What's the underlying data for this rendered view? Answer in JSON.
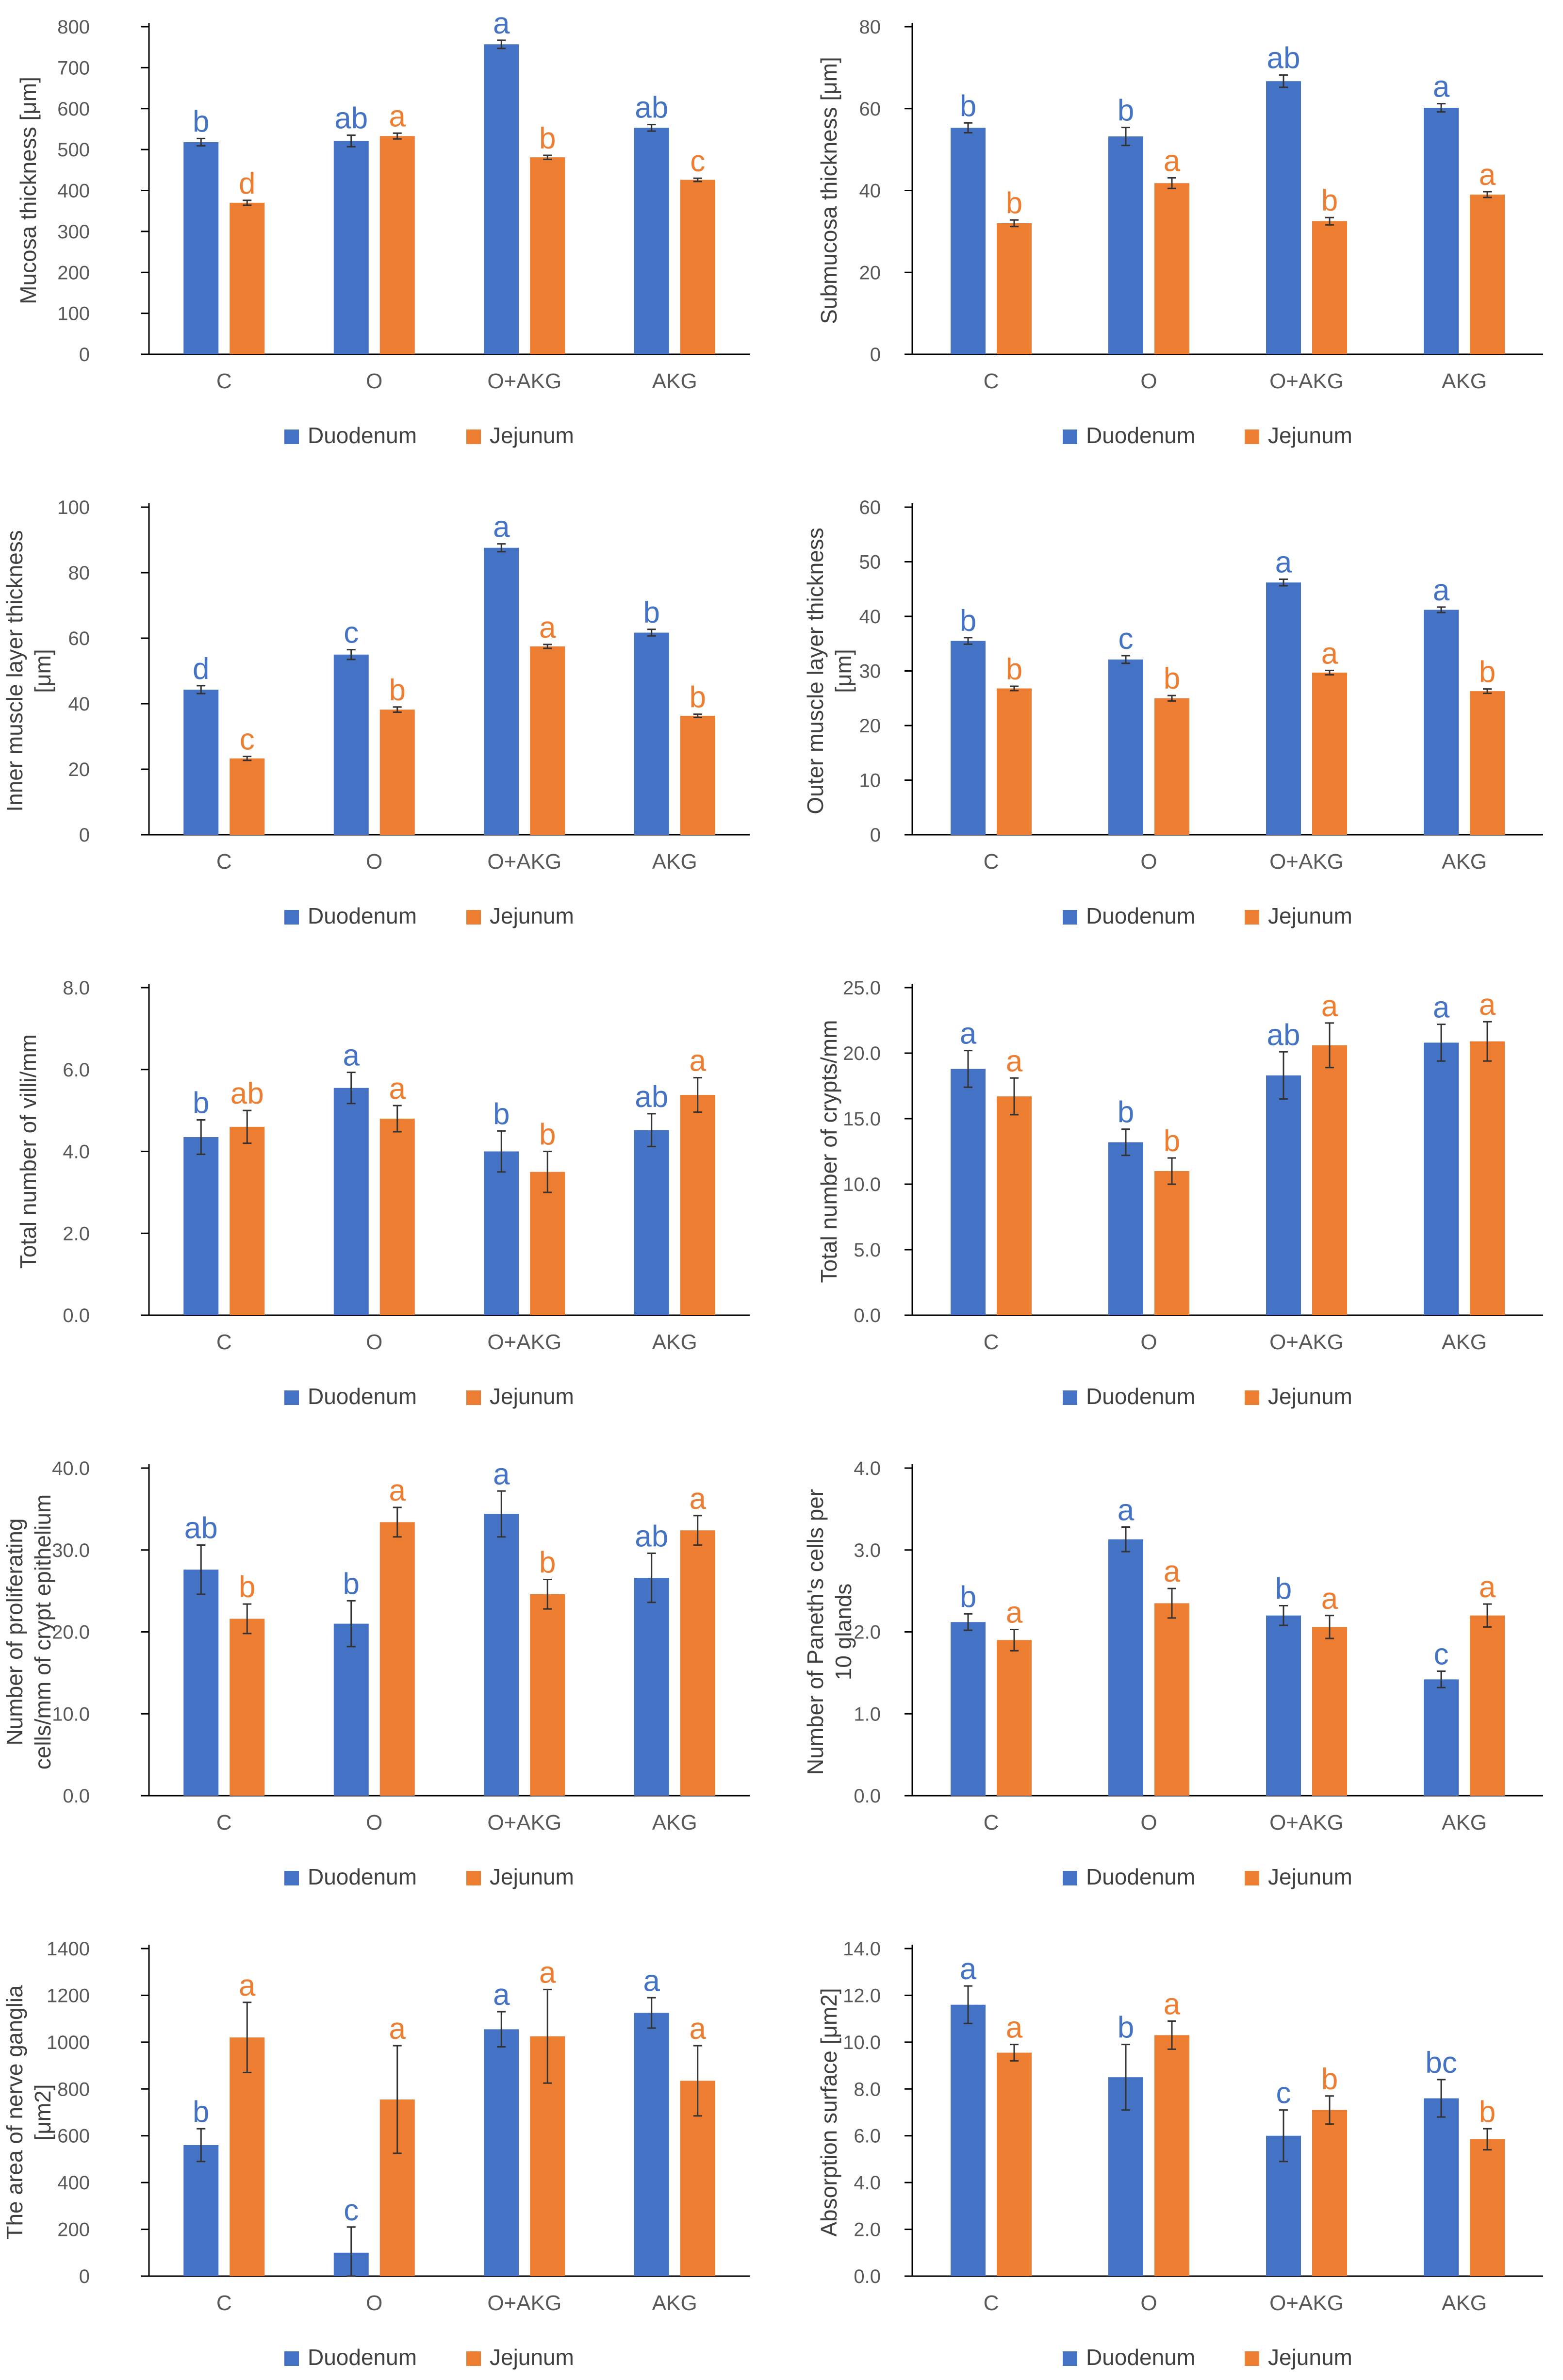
{
  "colors": {
    "duodenum": "#4472C4",
    "jejunum": "#ED7D31",
    "axis": "#000000",
    "tick": "#595959"
  },
  "legend": {
    "duodenum": "Duodenum",
    "jejunum": "Jejunum"
  },
  "chart_data": [
    {
      "type": "bar",
      "title": "",
      "categories": [
        "C",
        "O",
        "O+AKG",
        "AKG"
      ],
      "ylabel": [
        "Mucosa thickness [μm]"
      ],
      "ylim": [
        0,
        800
      ],
      "ystep": 100,
      "ydecimals": 0,
      "series": [
        {
          "name": "Duodenum",
          "values": [
            518,
            521,
            757,
            553
          ],
          "errors": [
            9,
            14,
            10,
            8
          ],
          "letters": [
            "b",
            "ab",
            "a",
            "ab"
          ]
        },
        {
          "name": "Jejunum",
          "values": [
            370,
            533,
            481,
            426
          ],
          "errors": [
            6,
            7,
            5,
            4
          ],
          "letters": [
            "d",
            "a",
            "b",
            "c"
          ]
        }
      ]
    },
    {
      "type": "bar",
      "title": "",
      "categories": [
        "C",
        "O",
        "O+AKG",
        "AKG"
      ],
      "ylabel": [
        "Submucosa thickness [μm]"
      ],
      "ylim": [
        0,
        80
      ],
      "ystep": 20,
      "ydecimals": 0,
      "series": [
        {
          "name": "Duodenum",
          "values": [
            55.3,
            53.2,
            66.7,
            60.2
          ],
          "errors": [
            1.2,
            2.2,
            1.5,
            1.0
          ],
          "letters": [
            "b",
            "b",
            "ab",
            "a"
          ]
        },
        {
          "name": "Jejunum",
          "values": [
            32.0,
            41.8,
            32.5,
            39.0
          ],
          "errors": [
            0.8,
            1.3,
            0.9,
            0.7
          ],
          "letters": [
            "b",
            "a",
            "b",
            "a"
          ]
        }
      ]
    },
    {
      "type": "bar",
      "title": "",
      "categories": [
        "C",
        "O",
        "O+AKG",
        "AKG"
      ],
      "ylabel": [
        "Inner muscle layer thickness",
        "[μm]"
      ],
      "ylim": [
        0,
        100
      ],
      "ystep": 20,
      "ydecimals": 0,
      "series": [
        {
          "name": "Duodenum",
          "values": [
            44.3,
            55.0,
            87.6,
            61.7
          ],
          "errors": [
            1.2,
            1.5,
            1.2,
            1.0
          ],
          "letters": [
            "d",
            "c",
            "a",
            "b"
          ]
        },
        {
          "name": "Jejunum",
          "values": [
            23.3,
            38.2,
            57.5,
            36.3
          ],
          "errors": [
            0.6,
            0.8,
            0.6,
            0.5
          ],
          "letters": [
            "c",
            "b",
            "a",
            "b"
          ]
        }
      ]
    },
    {
      "type": "bar",
      "title": "",
      "categories": [
        "C",
        "O",
        "O+AKG",
        "AKG"
      ],
      "ylabel": [
        "Outer muscle layer thickness",
        "[μm]"
      ],
      "ylim": [
        0,
        60
      ],
      "ystep": 10,
      "ydecimals": 0,
      "series": [
        {
          "name": "Duodenum",
          "values": [
            35.5,
            32.1,
            46.2,
            41.2
          ],
          "errors": [
            0.6,
            0.7,
            0.6,
            0.5
          ],
          "letters": [
            "b",
            "c",
            "a",
            "a"
          ]
        },
        {
          "name": "Jejunum",
          "values": [
            26.8,
            25.0,
            29.7,
            26.3
          ],
          "errors": [
            0.4,
            0.5,
            0.4,
            0.4
          ],
          "letters": [
            "b",
            "b",
            "a",
            "b"
          ]
        }
      ]
    },
    {
      "type": "bar",
      "title": "",
      "categories": [
        "C",
        "O",
        "O+AKG",
        "AKG"
      ],
      "ylabel": [
        "Total number of villi/mm"
      ],
      "ylim": [
        0,
        8
      ],
      "ystep": 2,
      "ydecimals": 1,
      "series": [
        {
          "name": "Duodenum",
          "values": [
            4.35,
            5.55,
            4.0,
            4.52
          ],
          "errors": [
            0.42,
            0.38,
            0.5,
            0.4
          ],
          "letters": [
            "b",
            "a",
            "b",
            "ab"
          ]
        },
        {
          "name": "Jejunum",
          "values": [
            4.6,
            4.8,
            3.5,
            5.38
          ],
          "errors": [
            0.4,
            0.32,
            0.5,
            0.42
          ],
          "letters": [
            "ab",
            "a",
            "b",
            "a"
          ]
        }
      ]
    },
    {
      "type": "bar",
      "title": "",
      "categories": [
        "C",
        "O",
        "O+AKG",
        "AKG"
      ],
      "ylabel": [
        "Total number of crypts/mm"
      ],
      "ylim": [
        0,
        25
      ],
      "ystep": 5,
      "ydecimals": 1,
      "series": [
        {
          "name": "Duodenum",
          "values": [
            18.8,
            13.2,
            18.3,
            20.8
          ],
          "errors": [
            1.4,
            1.0,
            1.8,
            1.4
          ],
          "letters": [
            "a",
            "b",
            "ab",
            "a"
          ]
        },
        {
          "name": "Jejunum",
          "values": [
            16.7,
            11.0,
            20.6,
            20.9
          ],
          "errors": [
            1.4,
            1.0,
            1.7,
            1.5
          ],
          "letters": [
            "a",
            "b",
            "a",
            "a"
          ]
        }
      ]
    },
    {
      "type": "bar",
      "title": "",
      "categories": [
        "C",
        "O",
        "O+AKG",
        "AKG"
      ],
      "ylabel": [
        "Number of proliferating",
        "cells/mm of crypt epithelium"
      ],
      "ylim": [
        0,
        40
      ],
      "ystep": 10,
      "ydecimals": 1,
      "series": [
        {
          "name": "Duodenum",
          "values": [
            27.6,
            21.0,
            34.4,
            26.6
          ],
          "errors": [
            3.0,
            2.8,
            2.8,
            3.0
          ],
          "letters": [
            "ab",
            "b",
            "a",
            "ab"
          ]
        },
        {
          "name": "Jejunum",
          "values": [
            21.6,
            33.4,
            24.6,
            32.4
          ],
          "errors": [
            1.8,
            1.8,
            1.8,
            1.8
          ],
          "letters": [
            "b",
            "a",
            "b",
            "a"
          ]
        }
      ]
    },
    {
      "type": "bar",
      "title": "",
      "categories": [
        "C",
        "O",
        "O+AKG",
        "AKG"
      ],
      "ylabel": [
        "Number of Paneth's cells per",
        "10 glands"
      ],
      "ylim": [
        0,
        4
      ],
      "ystep": 1,
      "ydecimals": 1,
      "series": [
        {
          "name": "Duodenum",
          "values": [
            2.12,
            3.13,
            2.2,
            1.42
          ],
          "errors": [
            0.1,
            0.15,
            0.12,
            0.1
          ],
          "letters": [
            "b",
            "a",
            "b",
            "c"
          ]
        },
        {
          "name": "Jejunum",
          "values": [
            1.9,
            2.35,
            2.06,
            2.2
          ],
          "errors": [
            0.13,
            0.18,
            0.14,
            0.14
          ],
          "letters": [
            "a",
            "a",
            "a",
            "a"
          ]
        }
      ]
    },
    {
      "type": "bar",
      "title": "",
      "categories": [
        "C",
        "O",
        "O+AKG",
        "AKG"
      ],
      "ylabel": [
        "The area of nerve ganglia",
        "[μm2]"
      ],
      "ylim": [
        0,
        1400
      ],
      "ystep": 200,
      "ydecimals": 0,
      "series": [
        {
          "name": "Duodenum",
          "values": [
            560,
            100,
            1055,
            1125
          ],
          "errors": [
            70,
            110,
            75,
            65
          ],
          "letters": [
            "b",
            "c",
            "a",
            "a"
          ]
        },
        {
          "name": "Jejunum",
          "values": [
            1020,
            755,
            1025,
            835
          ],
          "errors": [
            150,
            230,
            200,
            150
          ],
          "letters": [
            "a",
            "a",
            "a",
            "a"
          ]
        }
      ]
    },
    {
      "type": "bar",
      "title": "",
      "categories": [
        "C",
        "O",
        "O+AKG",
        "AKG"
      ],
      "ylabel": [
        "Absorption surface [μm2]"
      ],
      "ylim": [
        0,
        14
      ],
      "ystep": 2,
      "ydecimals": 1,
      "series": [
        {
          "name": "Duodenum",
          "values": [
            11.6,
            8.5,
            6.0,
            7.6
          ],
          "errors": [
            0.8,
            1.4,
            1.1,
            0.8
          ],
          "letters": [
            "a",
            "b",
            "c",
            "bc"
          ]
        },
        {
          "name": "Jejunum",
          "values": [
            9.55,
            10.3,
            7.1,
            5.85
          ],
          "errors": [
            0.35,
            0.6,
            0.6,
            0.45
          ],
          "letters": [
            "a",
            "a",
            "b",
            "b"
          ]
        }
      ]
    }
  ]
}
